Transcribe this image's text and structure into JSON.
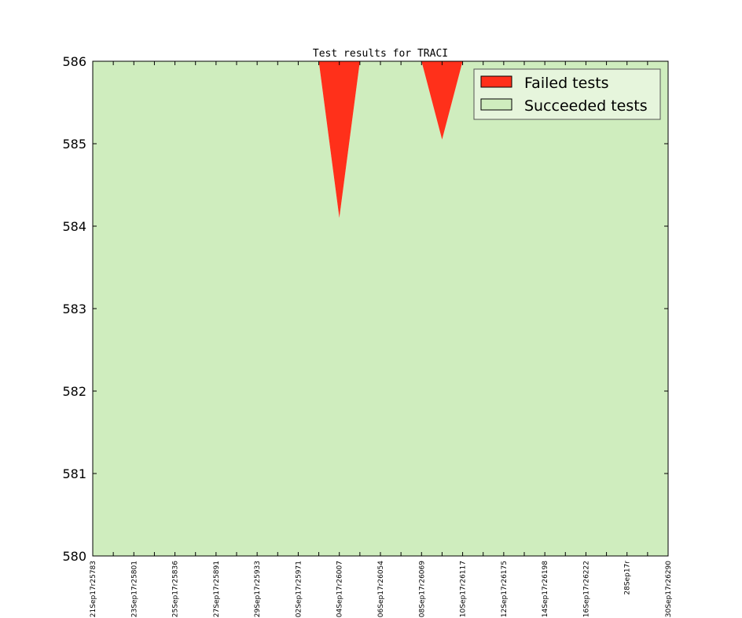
{
  "chart_data": {
    "type": "area",
    "title": "Test results for TRACI",
    "xlabel": "",
    "ylabel": "",
    "ylim": [
      580,
      586
    ],
    "yticks": [
      580,
      581,
      582,
      583,
      584,
      585,
      586
    ],
    "x": [
      "21Sep17r25783",
      "",
      "23Sep17r25801",
      "",
      "25Sep17r25836",
      "",
      "27Sep17r25891",
      "",
      "29Sep17r25933",
      "",
      "02Sep17r25971",
      "",
      "04Sep17r26007",
      "",
      "06Sep17r26054",
      "",
      "08Sep17r26069",
      "",
      "10Sep17r26117",
      "",
      "12Sep17r26175",
      "",
      "14Sep17r26198",
      "",
      "16Sep17r26222",
      "",
      "28Sep17r",
      "",
      "30Sep17r26290"
    ],
    "series": [
      {
        "name": "Failed tests",
        "color": "#ff301a",
        "values": [
          0,
          0,
          0,
          0,
          0,
          0,
          0,
          0,
          0,
          0,
          0,
          0,
          1.9,
          0,
          0,
          0,
          0,
          0.95,
          0,
          0,
          0,
          0,
          0,
          0,
          0,
          0,
          0,
          0,
          0
        ]
      },
      {
        "name": "Succeeded tests",
        "color": "#cfedbe",
        "values": [
          586,
          586,
          586,
          586,
          586,
          586,
          586,
          586,
          586,
          586,
          586,
          586,
          584.1,
          586,
          586,
          586,
          586,
          585.05,
          586,
          586,
          586,
          586,
          586,
          586,
          586,
          586,
          586,
          586,
          586
        ]
      }
    ],
    "legend": {
      "position": "upper-right",
      "entries": [
        "Failed tests",
        "Succeeded tests"
      ]
    },
    "grid": false
  }
}
